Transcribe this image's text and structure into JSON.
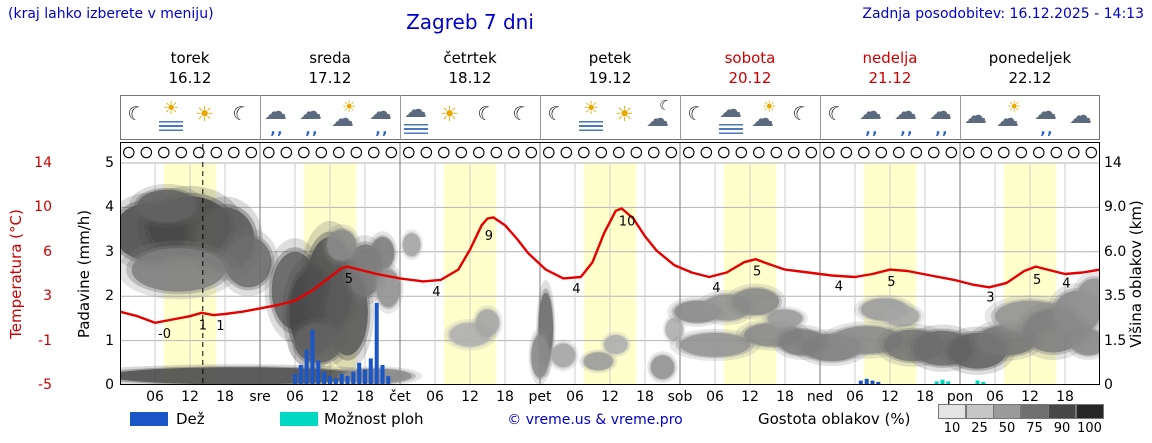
{
  "header": {
    "hint": "(kraj lahko izberete v meniju)",
    "title": "Zagreb 7 dni",
    "updated": "Zadnja posodobitev: 16.12.2025 - 14:13"
  },
  "colors": {
    "accent_blue": "#0000cc",
    "accent_red": "#cc0000",
    "temp_line": "#e60000",
    "rain": "#1a56c8",
    "showers": "#00d8c4",
    "day_band": "#ffffcc"
  },
  "days": [
    {
      "name": "torek",
      "date": "16.12",
      "color": "#000000"
    },
    {
      "name": "sreda",
      "date": "17.12",
      "color": "#000000"
    },
    {
      "name": "četrtek",
      "date": "18.12",
      "color": "#000000"
    },
    {
      "name": "petek",
      "date": "19.12",
      "color": "#000000"
    },
    {
      "name": "sobota",
      "date": "20.12",
      "color": "#cc0000"
    },
    {
      "name": "nedelja",
      "date": "21.12",
      "color": "#cc0000"
    },
    {
      "name": "ponedeljek",
      "date": "22.12",
      "color": "#000000"
    }
  ],
  "axes": {
    "temperature": {
      "label": "Temperatura (°C)",
      "ticks": [
        14,
        10,
        6,
        3,
        -1,
        -5
      ]
    },
    "precipitation": {
      "label": "Padavine (mm/h)",
      "ticks": [
        5,
        4,
        3,
        2,
        1,
        0
      ]
    },
    "cloud_height": {
      "label": "Višina oblakov (km)",
      "tick_labels": [
        "14",
        "9.0",
        "6.0",
        "3.5",
        "1.5",
        "0"
      ],
      "tick_values": [
        14,
        9,
        6,
        3.5,
        1.5,
        0
      ]
    }
  },
  "x_axis": {
    "hour_labels": [
      "06",
      "12",
      "18"
    ],
    "boundary_labels": [
      "sre",
      "čet",
      "pet",
      "sob",
      "ned",
      "pon"
    ]
  },
  "legend": {
    "rain_label": "Dež",
    "showers_label": "Možnost ploh",
    "copyright": "© vreme.us & vreme.pro",
    "cloud_density_label": "Gostota oblakov (%)",
    "cloud_scale": [
      {
        "label": "10",
        "color": "#e4e4e4"
      },
      {
        "label": "25",
        "color": "#c6c6c6"
      },
      {
        "label": "50",
        "color": "#9a9a9a"
      },
      {
        "label": "75",
        "color": "#6f6f6f"
      },
      {
        "label": "90",
        "color": "#474747"
      },
      {
        "label": "100",
        "color": "#262626"
      }
    ]
  },
  "chart_data": {
    "type": "meteogram",
    "time": {
      "start": "torek 16.12 00:00",
      "hours_total": 168,
      "now_hour": 14.2,
      "daylight_hours": [
        7.5,
        16.5
      ]
    },
    "symbols_row": {
      "symbol": "circle",
      "count": 56
    },
    "icons": [
      "moon",
      "fog-sun",
      "sun",
      "moon",
      "rain-cloud",
      "rain-cloud",
      "sun-cloud",
      "rain-cloud",
      "fog-cloud",
      "sun",
      "moon",
      "moon",
      "moon",
      "fog-sun",
      "sun",
      "moon-cloud",
      "moon",
      "fog-cloud",
      "sun-cloud",
      "moon",
      "moon",
      "rain-cloud",
      "rain-cloud",
      "rain-cloud",
      "cloud",
      "sun-cloud",
      "rain-cloud",
      "cloud"
    ],
    "temperature": {
      "unit": "°C",
      "points": [
        [
          0,
          1.6
        ],
        [
          3,
          1.2
        ],
        [
          6,
          0.6
        ],
        [
          9,
          0.9
        ],
        [
          12,
          1.2
        ],
        [
          14,
          1.5
        ],
        [
          16,
          1.3
        ],
        [
          18,
          1.4
        ],
        [
          21,
          1.6
        ],
        [
          24,
          1.9
        ],
        [
          27,
          2.2
        ],
        [
          30,
          2.6
        ],
        [
          33,
          3.4
        ],
        [
          36,
          4.3
        ],
        [
          38,
          4.9
        ],
        [
          39,
          5.0
        ],
        [
          41,
          4.8
        ],
        [
          44,
          4.5
        ],
        [
          48,
          4.2
        ],
        [
          52,
          4.0
        ],
        [
          55,
          4.1
        ],
        [
          58,
          4.8
        ],
        [
          60,
          6.2
        ],
        [
          62,
          8.4
        ],
        [
          63,
          9.0
        ],
        [
          64,
          9.1
        ],
        [
          66,
          8.4
        ],
        [
          68,
          7.2
        ],
        [
          70,
          5.9
        ],
        [
          73,
          4.8
        ],
        [
          76,
          4.2
        ],
        [
          79,
          4.3
        ],
        [
          81,
          5.3
        ],
        [
          83,
          7.7
        ],
        [
          85,
          9.7
        ],
        [
          86,
          9.9
        ],
        [
          88,
          9.0
        ],
        [
          90,
          7.4
        ],
        [
          92,
          6.1
        ],
        [
          95,
          5.1
        ],
        [
          98,
          4.6
        ],
        [
          101,
          4.3
        ],
        [
          104,
          4.6
        ],
        [
          107,
          5.3
        ],
        [
          109,
          5.5
        ],
        [
          111,
          5.2
        ],
        [
          114,
          4.8
        ],
        [
          118,
          4.6
        ],
        [
          122,
          4.4
        ],
        [
          126,
          4.3
        ],
        [
          129,
          4.5
        ],
        [
          132,
          4.8
        ],
        [
          135,
          4.7
        ],
        [
          139,
          4.4
        ],
        [
          143,
          4.1
        ],
        [
          146,
          3.8
        ],
        [
          149,
          3.6
        ],
        [
          152,
          3.9
        ],
        [
          155,
          4.7
        ],
        [
          157,
          5.0
        ],
        [
          159,
          4.8
        ],
        [
          162,
          4.5
        ],
        [
          165,
          4.6
        ],
        [
          168,
          4.8
        ]
      ],
      "labels": [
        [
          6,
          "-0"
        ],
        [
          13,
          "1"
        ],
        [
          16,
          "1"
        ],
        [
          38,
          "5"
        ],
        [
          53,
          "4"
        ],
        [
          62,
          "9"
        ],
        [
          77,
          "4"
        ],
        [
          85,
          "10"
        ],
        [
          101,
          "4"
        ],
        [
          108,
          "5"
        ],
        [
          122,
          "4"
        ],
        [
          131,
          "5"
        ],
        [
          148,
          "3"
        ],
        [
          156,
          "5"
        ],
        [
          161,
          "4"
        ]
      ]
    },
    "precipitation": {
      "unit": "mm/h",
      "rain_bars": [
        [
          30,
          0.25
        ],
        [
          31,
          0.45
        ],
        [
          32,
          0.8
        ],
        [
          33,
          1.25
        ],
        [
          34,
          0.55
        ],
        [
          35,
          0.3
        ],
        [
          36,
          0.2
        ],
        [
          37,
          0.15
        ],
        [
          38,
          0.25
        ],
        [
          39,
          0.2
        ],
        [
          40,
          0.3
        ],
        [
          41,
          0.5
        ],
        [
          42,
          0.35
        ],
        [
          43,
          0.6
        ],
        [
          44,
          1.85
        ],
        [
          45,
          0.45
        ],
        [
          46,
          0.2
        ],
        [
          127,
          0.1
        ],
        [
          128,
          0.14
        ],
        [
          129,
          0.1
        ],
        [
          130,
          0.07
        ]
      ],
      "showers_bars": [
        [
          140,
          0.08
        ],
        [
          141,
          0.12
        ],
        [
          142,
          0.08
        ],
        [
          147,
          0.1
        ],
        [
          148,
          0.07
        ]
      ]
    },
    "clouds": {
      "unit": "km",
      "blobs": [
        [
          5,
          7.5,
          12,
          4,
          0.8
        ],
        [
          12,
          8,
          14,
          4.5,
          0.85
        ],
        [
          8,
          9.5,
          10,
          3,
          0.7
        ],
        [
          18,
          7,
          10,
          4,
          0.75
        ],
        [
          22,
          5.5,
          8,
          3,
          0.65
        ],
        [
          10,
          5,
          16,
          2.5,
          0.55
        ],
        [
          30,
          4,
          8,
          4,
          0.7
        ],
        [
          33,
          3,
          8,
          4,
          0.85
        ],
        [
          36,
          4.5,
          8,
          5,
          0.8
        ],
        [
          39,
          3,
          7,
          4,
          0.75
        ],
        [
          42,
          5,
          6,
          3,
          0.6
        ],
        [
          38,
          6.5,
          5,
          2,
          0.5
        ],
        [
          45,
          6,
          4,
          2,
          0.55
        ],
        [
          34,
          1.5,
          8,
          1.5,
          0.7
        ],
        [
          46,
          4,
          4,
          2,
          0.45
        ],
        [
          20,
          0.25,
          44,
          0.7,
          0.8
        ],
        [
          44,
          0.3,
          12,
          0.5,
          0.5
        ],
        [
          50,
          6.5,
          3,
          1.5,
          0.35
        ],
        [
          60,
          1.8,
          7,
          1,
          0.3
        ],
        [
          63,
          2.3,
          4,
          1.2,
          0.35
        ],
        [
          73,
          2.2,
          2.5,
          3,
          0.65
        ],
        [
          72,
          1,
          3,
          1.5,
          0.5
        ],
        [
          76,
          1,
          4,
          0.8,
          0.35
        ],
        [
          82,
          0.8,
          5,
          0.6,
          0.4
        ],
        [
          85,
          1.4,
          4,
          0.7,
          0.3
        ],
        [
          93,
          0.6,
          4,
          0.8,
          0.45
        ],
        [
          95,
          2,
          3,
          1,
          0.3
        ],
        [
          99,
          2.8,
          8,
          1,
          0.5
        ],
        [
          104,
          3,
          8,
          1.2,
          0.45
        ],
        [
          109,
          3.3,
          8,
          1.3,
          0.5
        ],
        [
          102,
          1.4,
          12,
          0.9,
          0.45
        ],
        [
          112,
          1.8,
          10,
          1,
          0.5
        ],
        [
          117,
          1.5,
          8,
          1,
          0.55
        ],
        [
          114,
          2.5,
          6,
          0.8,
          0.4
        ],
        [
          122,
          1.3,
          10,
          1,
          0.55
        ],
        [
          128,
          1.6,
          12,
          1.1,
          0.5
        ],
        [
          131,
          2.9,
          8,
          1,
          0.4
        ],
        [
          134,
          2.6,
          6,
          0.9,
          0.35
        ],
        [
          136,
          1.4,
          10,
          1.2,
          0.6
        ],
        [
          141,
          1.3,
          10,
          1.3,
          0.65
        ],
        [
          147,
          1.2,
          10,
          1.3,
          0.7
        ],
        [
          152,
          1.6,
          10,
          1.2,
          0.6
        ],
        [
          156,
          2.6,
          12,
          1.4,
          0.45
        ],
        [
          160,
          2,
          10,
          1.8,
          0.55
        ],
        [
          164,
          2.8,
          8,
          2,
          0.5
        ],
        [
          167,
          3.5,
          6,
          2,
          0.45
        ],
        [
          166,
          1.5,
          6,
          1,
          0.5
        ]
      ]
    }
  }
}
